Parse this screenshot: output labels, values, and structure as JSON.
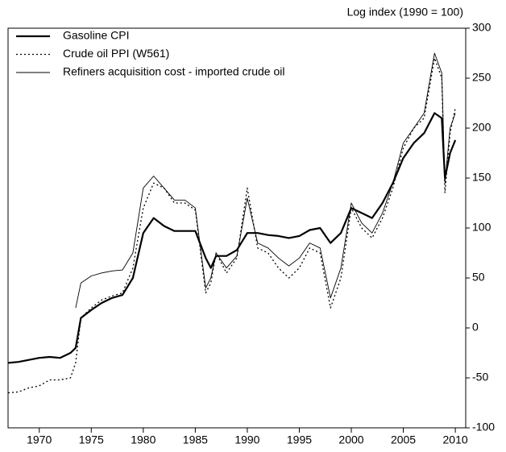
{
  "chart_data": {
    "type": "line",
    "y_label": "Log index (1990 = 100)",
    "x": [
      1967,
      1968,
      1969,
      1970,
      1971,
      1972,
      1973,
      1973.5,
      1974,
      1975,
      1976,
      1977,
      1978,
      1979,
      1980,
      1981,
      1982,
      1983,
      1984,
      1985,
      1986,
      1986.5,
      1987,
      1988,
      1989,
      1990,
      1991,
      1992,
      1993,
      1994,
      1995,
      1996,
      1997,
      1998,
      1999,
      2000,
      2001,
      2002,
      2003,
      2004,
      2005,
      2006,
      2007,
      2008,
      2008.7,
      2009,
      2009.5,
      2010
    ],
    "series": [
      {
        "name": "Gasoline CPI",
        "color": "#000000",
        "style": "thick",
        "values": [
          -35,
          -34,
          -32,
          -30,
          -29,
          -30,
          -25,
          -20,
          10,
          18,
          25,
          30,
          33,
          50,
          95,
          110,
          102,
          97,
          97,
          97,
          70,
          60,
          72,
          72,
          78,
          95,
          95,
          93,
          92,
          90,
          92,
          98,
          100,
          85,
          95,
          120,
          115,
          110,
          125,
          145,
          170,
          185,
          195,
          215,
          210,
          150,
          175,
          188
        ]
      },
      {
        "name": "Crude oil PPI (W561)",
        "color": "#000000",
        "style": "dotted",
        "values": [
          -65,
          -64,
          -60,
          -58,
          -52,
          -52,
          -50,
          -35,
          10,
          20,
          28,
          32,
          35,
          60,
          120,
          145,
          140,
          125,
          125,
          118,
          35,
          45,
          75,
          55,
          70,
          140,
          80,
          75,
          60,
          50,
          60,
          80,
          75,
          20,
          50,
          120,
          100,
          90,
          110,
          140,
          180,
          200,
          210,
          270,
          250,
          135,
          195,
          220
        ]
      },
      {
        "name": "Refiners acquisition cost - imported crude oil",
        "color": "#000000",
        "style": "thin",
        "values": [
          null,
          null,
          null,
          null,
          null,
          null,
          null,
          20,
          45,
          52,
          55,
          57,
          58,
          75,
          140,
          152,
          140,
          128,
          128,
          120,
          40,
          50,
          75,
          60,
          72,
          130,
          85,
          80,
          70,
          62,
          70,
          85,
          80,
          30,
          60,
          125,
          105,
          95,
          115,
          145,
          185,
          200,
          215,
          275,
          255,
          145,
          200,
          215
        ]
      }
    ],
    "xlim": [
      1967,
      2011
    ],
    "xticks": [
      1970,
      1975,
      1980,
      1985,
      1990,
      1995,
      2000,
      2005,
      2010
    ],
    "ylim": [
      -100,
      300
    ],
    "yticks": [
      -100,
      -50,
      0,
      50,
      100,
      150,
      200,
      250,
      300
    ],
    "y_axis_side": "right",
    "legend": "upper left"
  }
}
